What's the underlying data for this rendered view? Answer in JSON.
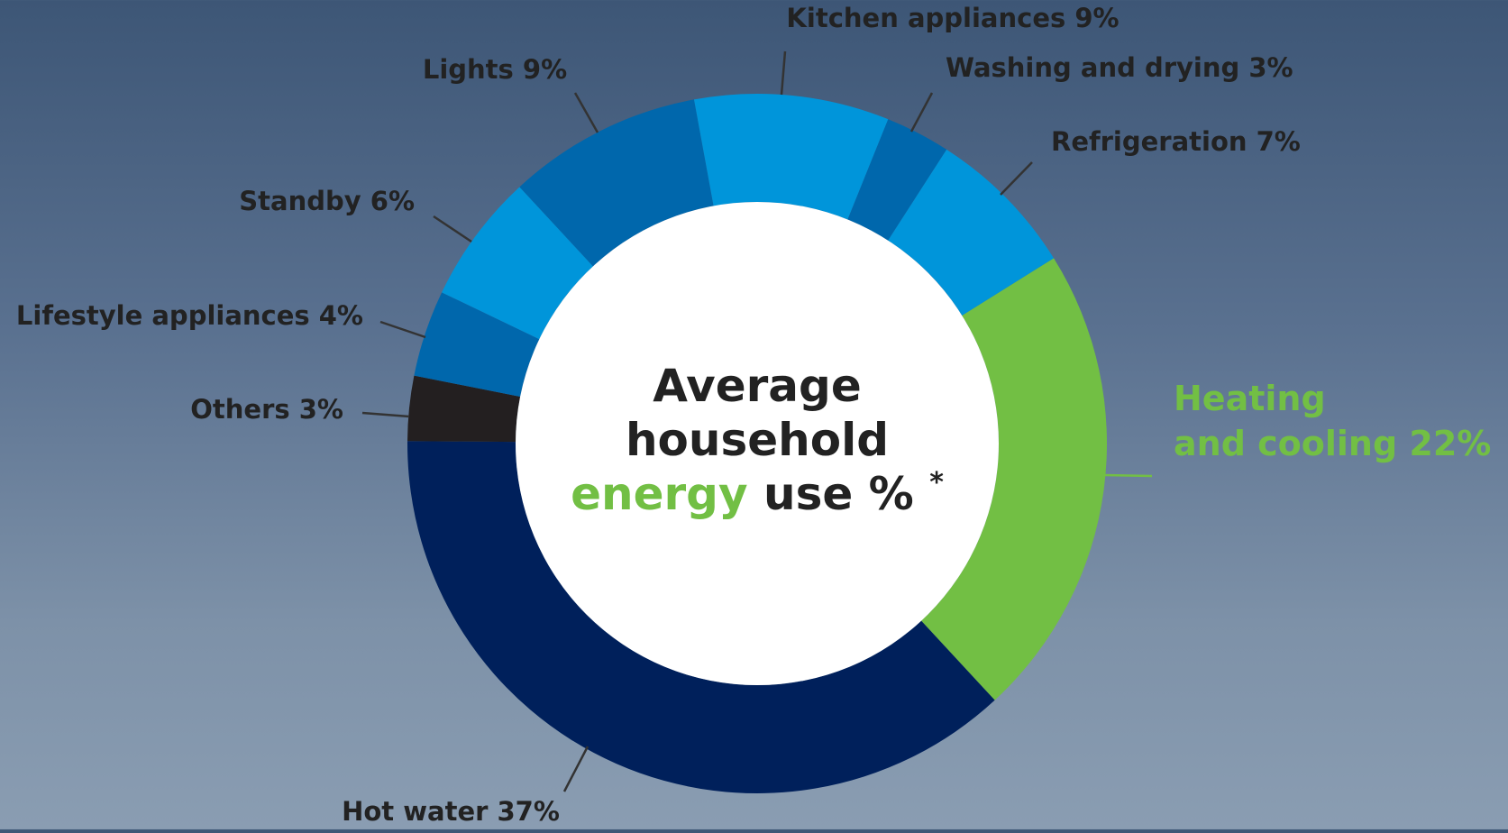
{
  "chart_data": {
    "type": "pie",
    "donut": true,
    "title_lines": [
      "Average",
      "household"
    ],
    "title_accent_word": "energy",
    "title_tail": "use %",
    "title_footnote_mark": "*",
    "series": [
      {
        "name": "Heating and cooling",
        "value": 22,
        "color": "#72bf44",
        "label_lines": [
          "Heating",
          "and cooling 22%"
        ],
        "label_color": "#72bf44"
      },
      {
        "name": "Hot water",
        "value": 37,
        "color": "#00205b",
        "label_lines": [
          "Hot water 37%"
        ],
        "label_color": "#222222"
      },
      {
        "name": "Others",
        "value": 3,
        "color": "#231f20",
        "label_lines": [
          "Others 3%"
        ],
        "label_color": "#222222"
      },
      {
        "name": "Lifestyle appliances",
        "value": 4,
        "color": "#0067ac",
        "label_lines": [
          "Lifestyle appliances 4%"
        ],
        "label_color": "#222222"
      },
      {
        "name": "Standby",
        "value": 6,
        "color": "#0095da",
        "label_lines": [
          "Standby 6%"
        ],
        "label_color": "#222222"
      },
      {
        "name": "Lights",
        "value": 9,
        "color": "#0067ac",
        "label_lines": [
          "Lights 9%"
        ],
        "label_color": "#222222"
      },
      {
        "name": "Kitchen appliances",
        "value": 9,
        "color": "#0095da",
        "label_lines": [
          "Kitchen appliances 9%"
        ],
        "label_color": "#222222"
      },
      {
        "name": "Washing and drying",
        "value": 3,
        "color": "#0067ac",
        "label_lines": [
          "Washing and drying 3%"
        ],
        "label_color": "#222222"
      },
      {
        "name": "Refrigeration",
        "value": 7,
        "color": "#0095da",
        "label_lines": [
          "Refrigeration 7%"
        ],
        "label_color": "#222222"
      }
    ],
    "colors": {
      "accent_green": "#72bf44",
      "title_text": "#222222",
      "leader_line": "#333333",
      "center_fill": "#ffffff"
    }
  }
}
